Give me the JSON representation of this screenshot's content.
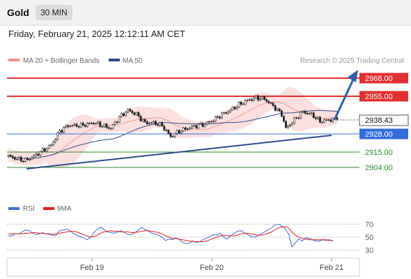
{
  "header": {
    "instrument": "Gold",
    "timeframe": "30 MIN",
    "datetime": "Friday, February 21, 2025 12:12:11 AM CET"
  },
  "chart_data": [
    {
      "type": "candlestick",
      "legend": [
        {
          "label": "MA 20 + Bollinger Bands",
          "color": "#f28e8e"
        },
        {
          "label": "MA 50",
          "color": "#2c4c8c"
        }
      ],
      "source_label": "Research © 2025 Trading Central",
      "ylim": [
        2886,
        2976
      ],
      "x_ticks": [
        "Feb 19",
        "Feb 20",
        "Feb 21"
      ],
      "current_price": "2938.43",
      "levels": [
        {
          "value": 2968.0,
          "label": "2968.00",
          "kind": "resistance",
          "color": "#e03030"
        },
        {
          "value": 2955.0,
          "label": "2955.00",
          "kind": "resistance",
          "color": "#e03030"
        },
        {
          "value": 2928.0,
          "label": "2928.00",
          "kind": "pivot",
          "color": "#2f6de0"
        },
        {
          "value": 2915.0,
          "label": "2915.00",
          "kind": "support",
          "color": "#2e8b2e"
        },
        {
          "value": 2904.0,
          "label": "2904.00",
          "kind": "support",
          "color": "#2e8b2e"
        }
      ],
      "anchors": [
        [
          0,
          2912
        ],
        [
          4,
          2910
        ],
        [
          8,
          2909
        ],
        [
          12,
          2912
        ],
        [
          16,
          2916
        ],
        [
          20,
          2920
        ],
        [
          24,
          2930
        ],
        [
          28,
          2934
        ],
        [
          34,
          2934
        ],
        [
          40,
          2936
        ],
        [
          44,
          2934
        ],
        [
          48,
          2932
        ],
        [
          52,
          2940
        ],
        [
          56,
          2945
        ],
        [
          60,
          2942
        ],
        [
          64,
          2936
        ],
        [
          68,
          2936
        ],
        [
          72,
          2934
        ],
        [
          76,
          2926
        ],
        [
          80,
          2930
        ],
        [
          84,
          2932
        ],
        [
          88,
          2934
        ],
        [
          92,
          2935
        ],
        [
          96,
          2938
        ],
        [
          100,
          2942
        ],
        [
          104,
          2945
        ],
        [
          108,
          2949
        ],
        [
          112,
          2952
        ],
        [
          116,
          2954
        ],
        [
          120,
          2953
        ],
        [
          124,
          2948
        ],
        [
          128,
          2942
        ],
        [
          130,
          2932
        ],
        [
          134,
          2938
        ],
        [
          138,
          2944
        ],
        [
          142,
          2942
        ],
        [
          146,
          2937
        ],
        [
          150,
          2938
        ],
        [
          154,
          2938.43
        ]
      ]
    },
    {
      "type": "line",
      "legend": [
        {
          "label": "RSI",
          "color": "#3f6fd4"
        },
        {
          "label": "9MA",
          "color": "#e02020"
        }
      ],
      "ylim": [
        20,
        80
      ],
      "y_ticks": [
        "70",
        "50",
        "30"
      ],
      "series": [
        {
          "name": "RSI",
          "values": [
            52,
            52,
            55,
            55,
            58,
            61,
            60,
            57,
            54,
            55,
            57,
            55,
            54,
            53,
            53,
            60,
            61,
            62,
            60,
            56,
            53,
            51,
            49,
            46,
            49,
            57,
            62,
            65,
            62,
            58,
            57,
            56,
            58,
            60,
            57,
            54,
            54,
            57,
            61,
            65,
            62,
            59,
            56,
            55,
            53,
            50,
            45,
            47,
            46,
            49,
            46,
            42,
            40,
            41,
            44,
            42,
            43,
            46,
            49,
            51,
            54,
            53,
            56,
            50,
            47,
            52,
            55,
            59,
            60,
            57,
            54,
            51,
            50,
            52,
            55,
            58,
            61,
            64,
            69,
            70,
            67,
            63,
            55,
            35,
            41,
            47,
            44,
            49,
            48,
            46,
            44,
            44,
            46,
            45,
            46,
            44
          ]
        },
        {
          "name": "9MA",
          "values": [
            55,
            55,
            55,
            55,
            55,
            56,
            56,
            57,
            57,
            56,
            56,
            55,
            55,
            54,
            55,
            56,
            57,
            58,
            59,
            59,
            58,
            56,
            54,
            52,
            50,
            51,
            53,
            56,
            58,
            59,
            60,
            59,
            59,
            58,
            58,
            58,
            57,
            57,
            58,
            59,
            60,
            60,
            59,
            58,
            57,
            55,
            52,
            50,
            48,
            48,
            47,
            46,
            45,
            44,
            43,
            43,
            43,
            43,
            44,
            46,
            48,
            50,
            52,
            53,
            52,
            52,
            52,
            53,
            55,
            56,
            56,
            55,
            54,
            53,
            53,
            54,
            56,
            58,
            61,
            64,
            66,
            66,
            64,
            58,
            53,
            50,
            48,
            47,
            46,
            46,
            46,
            46,
            46,
            46,
            45,
            45
          ]
        }
      ]
    }
  ]
}
